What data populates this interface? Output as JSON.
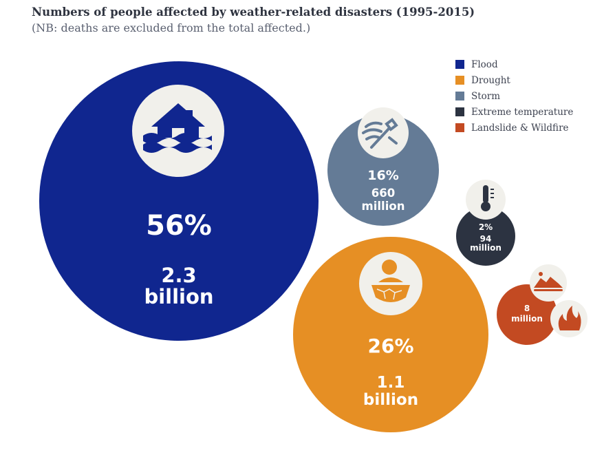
{
  "title": "Numbers of people affected by weather-related disasters (1995-2015)",
  "subtitle": "(NB: deaths are excluded from the total affected.)",
  "chart_data": {
    "type": "bubble",
    "title": "Numbers of people affected by weather-related disasters (1995-2015)",
    "subtitle": "(NB: deaths are excluded from the total affected.)",
    "legend_position": "top-right",
    "series": [
      {
        "name": "Flood",
        "color": "#10268f",
        "percent": 56,
        "people_affected": 2300000000,
        "pct_label": "56%",
        "value_line1": "2.3",
        "value_line2": "billion",
        "icon": "flooded-house-icon"
      },
      {
        "name": "Drought",
        "color": "#e68f24",
        "percent": 26,
        "people_affected": 1100000000,
        "pct_label": "26%",
        "value_line1": "1.1",
        "value_line2": "billion",
        "icon": "drought-sun-cracked-earth-icon"
      },
      {
        "name": "Storm",
        "color": "#647b96",
        "percent": 16,
        "people_affected": 660000000,
        "pct_label": "16%",
        "value_line1": "660",
        "value_line2": "million",
        "icon": "storm-wind-tree-icon"
      },
      {
        "name": "Extreme temperature",
        "color": "#2c3341",
        "percent": 2,
        "people_affected": 94000000,
        "pct_label": "2%",
        "value_line1": "94",
        "value_line2": "million",
        "icon": "thermometer-icon"
      },
      {
        "name": "Landslide & Wildfire",
        "color": "#c34a22",
        "percent": null,
        "people_affected": 8000000,
        "pct_label": "",
        "value_line1": "8",
        "value_line2": "million",
        "icon": "landslide-and-fire-icon"
      }
    ]
  }
}
